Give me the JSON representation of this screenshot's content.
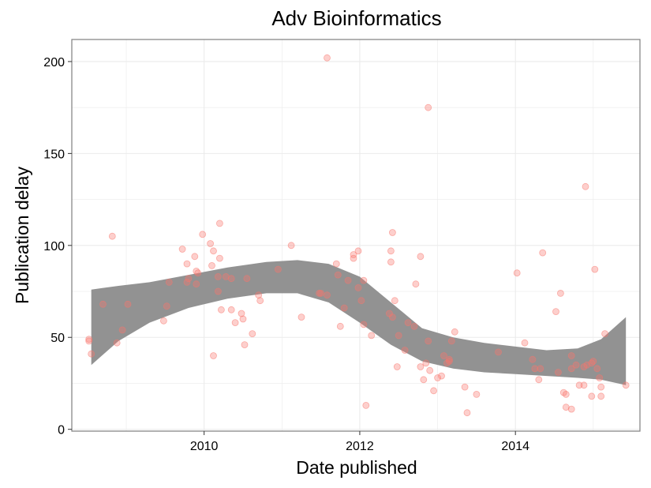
{
  "chart_data": {
    "type": "scatter",
    "title": "Adv Bioinformatics",
    "xlabel": "Date published",
    "ylabel": "Publication delay",
    "x_is_date_year": true,
    "xlim": [
      2008.3,
      2015.6
    ],
    "ylim": [
      -1,
      212
    ],
    "xticks": [
      2010,
      2012,
      2014
    ],
    "xtick_labels": [
      "2010",
      "2012",
      "2014"
    ],
    "yticks": [
      0,
      50,
      100,
      150,
      200
    ],
    "ytick_labels": [
      "0",
      "50",
      "100",
      "150",
      "200"
    ],
    "grid": true,
    "legend": "none",
    "colors": {
      "points": "#f8766d",
      "band": "#8c8c8c",
      "grid": "#ebebeb",
      "frame": "#7f7f7f"
    },
    "series": [
      {
        "points": [
          [
            2008.52,
            49
          ],
          [
            2008.52,
            48
          ],
          [
            2008.55,
            41
          ],
          [
            2008.7,
            68
          ],
          [
            2008.82,
            105
          ],
          [
            2008.88,
            47
          ],
          [
            2008.95,
            54
          ],
          [
            2009.02,
            68
          ],
          [
            2009.48,
            59
          ],
          [
            2009.52,
            67
          ],
          [
            2009.55,
            80
          ],
          [
            2009.72,
            98
          ],
          [
            2009.78,
            90
          ],
          [
            2009.78,
            80
          ],
          [
            2009.8,
            82
          ],
          [
            2009.88,
            94
          ],
          [
            2009.9,
            86
          ],
          [
            2009.9,
            79
          ],
          [
            2009.92,
            85
          ],
          [
            2009.98,
            106
          ],
          [
            2010.08,
            101
          ],
          [
            2010.1,
            89
          ],
          [
            2010.12,
            97
          ],
          [
            2010.12,
            40
          ],
          [
            2010.18,
            83
          ],
          [
            2010.18,
            75
          ],
          [
            2010.2,
            93
          ],
          [
            2010.2,
            112
          ],
          [
            2010.22,
            65
          ],
          [
            2010.28,
            83
          ],
          [
            2010.35,
            82
          ],
          [
            2010.35,
            65
          ],
          [
            2010.4,
            58
          ],
          [
            2010.48,
            63
          ],
          [
            2010.5,
            60
          ],
          [
            2010.52,
            46
          ],
          [
            2010.55,
            82
          ],
          [
            2010.62,
            52
          ],
          [
            2010.7,
            73
          ],
          [
            2010.72,
            70
          ],
          [
            2010.95,
            87
          ],
          [
            2011.12,
            100
          ],
          [
            2011.25,
            61
          ],
          [
            2011.48,
            74
          ],
          [
            2011.5,
            74
          ],
          [
            2011.58,
            73
          ],
          [
            2011.58,
            202
          ],
          [
            2011.7,
            90
          ],
          [
            2011.72,
            84
          ],
          [
            2011.75,
            56
          ],
          [
            2011.8,
            66
          ],
          [
            2011.85,
            81
          ],
          [
            2011.92,
            95
          ],
          [
            2011.92,
            93
          ],
          [
            2011.98,
            97
          ],
          [
            2011.98,
            77
          ],
          [
            2012.02,
            70
          ],
          [
            2012.05,
            57
          ],
          [
            2012.05,
            81
          ],
          [
            2012.08,
            13
          ],
          [
            2012.15,
            51
          ],
          [
            2012.38,
            63
          ],
          [
            2012.4,
            97
          ],
          [
            2012.4,
            91
          ],
          [
            2012.42,
            61
          ],
          [
            2012.42,
            107
          ],
          [
            2012.45,
            70
          ],
          [
            2012.48,
            34
          ],
          [
            2012.5,
            51
          ],
          [
            2012.58,
            43
          ],
          [
            2012.62,
            58
          ],
          [
            2012.7,
            56
          ],
          [
            2012.72,
            79
          ],
          [
            2012.78,
            94
          ],
          [
            2012.78,
            34
          ],
          [
            2012.82,
            27
          ],
          [
            2012.85,
            36
          ],
          [
            2012.88,
            48
          ],
          [
            2012.88,
            175
          ],
          [
            2012.9,
            32
          ],
          [
            2012.95,
            21
          ],
          [
            2013.0,
            28
          ],
          [
            2013.05,
            29
          ],
          [
            2013.08,
            40
          ],
          [
            2013.12,
            36
          ],
          [
            2013.15,
            38
          ],
          [
            2013.15,
            37
          ],
          [
            2013.18,
            48
          ],
          [
            2013.22,
            53
          ],
          [
            2013.35,
            23
          ],
          [
            2013.38,
            9
          ],
          [
            2013.5,
            19
          ],
          [
            2013.78,
            42
          ],
          [
            2014.02,
            85
          ],
          [
            2014.12,
            47
          ],
          [
            2014.22,
            38
          ],
          [
            2014.25,
            33
          ],
          [
            2014.3,
            27
          ],
          [
            2014.32,
            33
          ],
          [
            2014.35,
            96
          ],
          [
            2014.52,
            64
          ],
          [
            2014.55,
            31
          ],
          [
            2014.58,
            74
          ],
          [
            2014.62,
            20
          ],
          [
            2014.65,
            19
          ],
          [
            2014.65,
            12
          ],
          [
            2014.72,
            11
          ],
          [
            2014.72,
            40
          ],
          [
            2014.72,
            33
          ],
          [
            2014.78,
            35
          ],
          [
            2014.82,
            24
          ],
          [
            2014.88,
            24
          ],
          [
            2014.88,
            34
          ],
          [
            2014.9,
            132
          ],
          [
            2014.92,
            35
          ],
          [
            2014.98,
            36
          ],
          [
            2014.98,
            18
          ],
          [
            2015.0,
            37
          ],
          [
            2015.02,
            87
          ],
          [
            2015.05,
            33
          ],
          [
            2015.08,
            28
          ],
          [
            2015.1,
            23
          ],
          [
            2015.1,
            18
          ],
          [
            2015.15,
            52
          ],
          [
            2015.42,
            24
          ]
        ]
      }
    ],
    "confidence_band": {
      "x": [
        2008.55,
        2008.9,
        2009.3,
        2009.8,
        2010.3,
        2010.8,
        2011.2,
        2011.6,
        2012.0,
        2012.4,
        2012.8,
        2013.2,
        2013.6,
        2014.0,
        2014.4,
        2014.8,
        2015.1,
        2015.42
      ],
      "upper": [
        76,
        78,
        80,
        84,
        88,
        91,
        92,
        90,
        83,
        69,
        55,
        50,
        47,
        45,
        43,
        44,
        49,
        61
      ],
      "lower": [
        35,
        48,
        58,
        66,
        71,
        74,
        74,
        69,
        58,
        46,
        37,
        33,
        31,
        30,
        29,
        28,
        27,
        24
      ]
    }
  }
}
